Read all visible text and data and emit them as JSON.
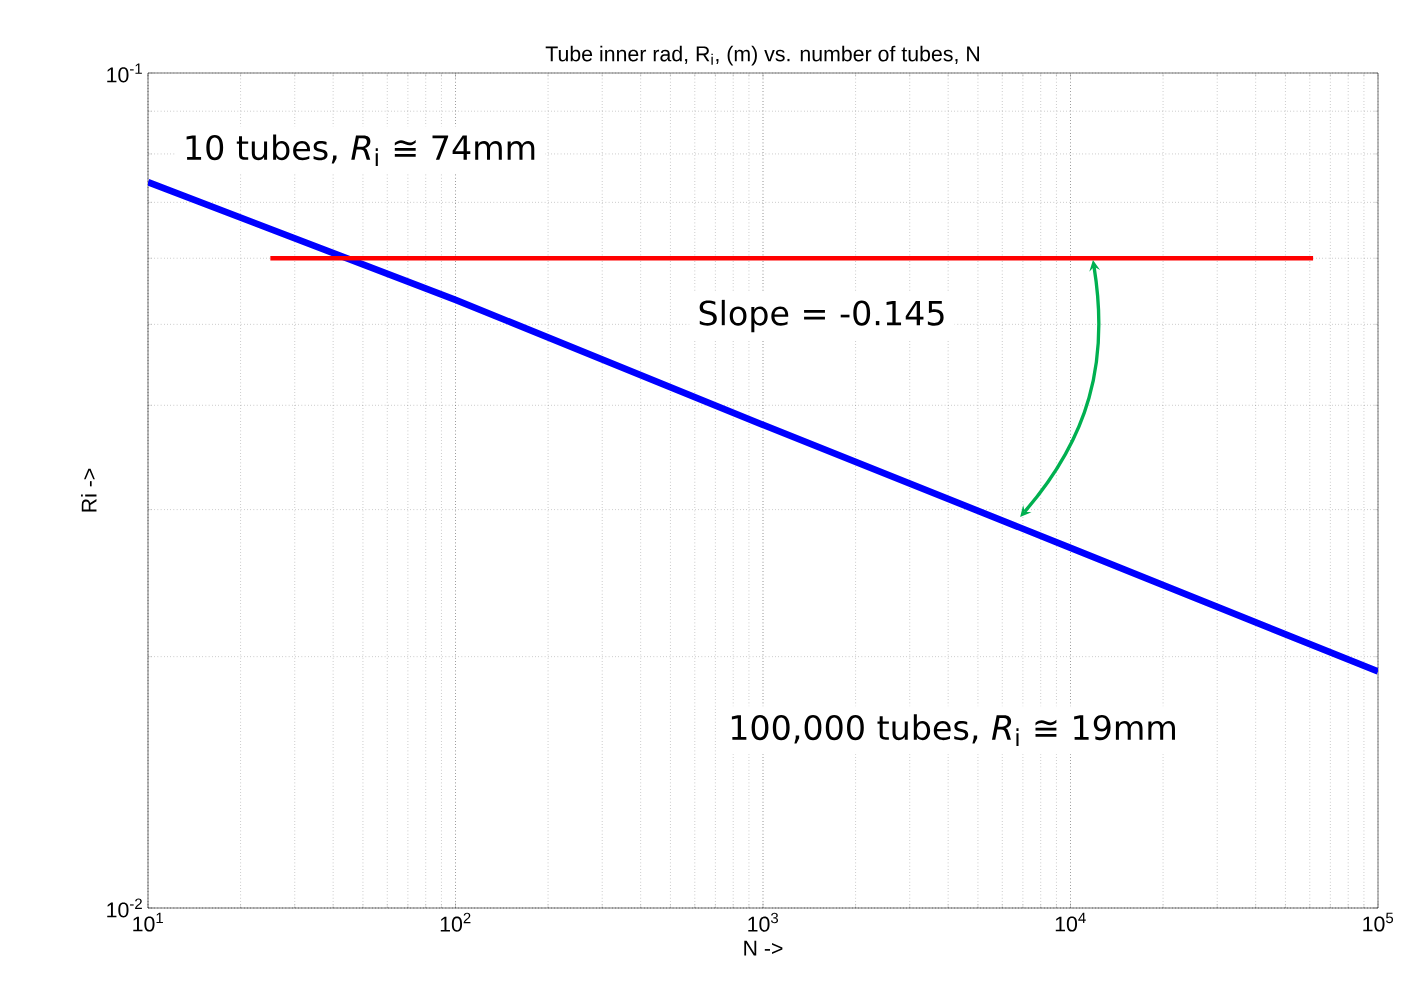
{
  "chart_data": {
    "type": "line",
    "title": "Tube inner rad, R$_{i}$, (m) vs. number of tubes, N",
    "xlabel": "N ->",
    "ylabel": "Ri ->",
    "log": "xy",
    "grid": true,
    "xlim": [
      10,
      100000
    ],
    "ylim": [
      0.01,
      0.1
    ],
    "xticks": [
      {
        "value": 10,
        "label": "10$^{1}$"
      },
      {
        "value": 100,
        "label": "10$^{2}$"
      },
      {
        "value": 1000,
        "label": "10$^{3}$"
      },
      {
        "value": 10000,
        "label": "10$^{4}$"
      },
      {
        "value": 100000,
        "label": "10$^{5}$"
      }
    ],
    "yticks": [
      {
        "value": 0.01,
        "label": "10$^{-2}$"
      },
      {
        "value": 0.1,
        "label": "10$^{-1}$"
      }
    ],
    "series": [
      {
        "color": "#0000ff",
        "x": [
          10,
          100,
          1000,
          10000,
          100000
        ],
        "values": [
          0.074,
          0.0535,
          0.0379,
          0.027,
          0.0192
        ]
      },
      {
        "color": "#ff0000",
        "x": [
          25,
          61500
        ],
        "values": [
          0.06,
          0.06
        ]
      }
    ],
    "annotations": [
      {
        "text": "10 tubes, *R*$_{i}$ ≅ 74mm",
        "x": 10,
        "y": 0.074
      },
      "Slope = -0.145",
      "100,000 tubes, *R*$_{i}$ ≅ 19mm"
    ]
  }
}
